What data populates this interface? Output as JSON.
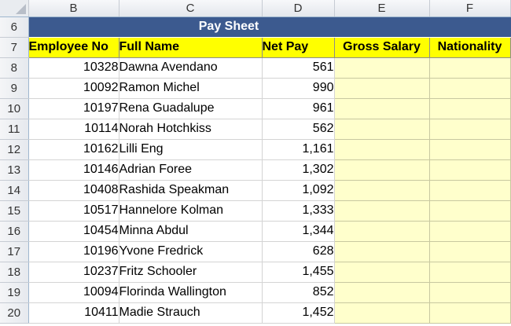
{
  "columns": [
    "B",
    "C",
    "D",
    "E",
    "F"
  ],
  "title_row": {
    "row": "6",
    "title": "Pay Sheet"
  },
  "header_row": {
    "row": "7",
    "employee_no": "Employee No",
    "full_name": "Full Name",
    "net_pay": "Net Pay",
    "gross_salary": "Gross Salary",
    "nationality": "Nationality"
  },
  "rows": [
    {
      "row": "8",
      "employee_no": "10328",
      "full_name": "Dawna Avendano",
      "net_pay": "561"
    },
    {
      "row": "9",
      "employee_no": "10092",
      "full_name": "Ramon Michel",
      "net_pay": "990"
    },
    {
      "row": "10",
      "employee_no": "10197",
      "full_name": "Rena Guadalupe",
      "net_pay": "961"
    },
    {
      "row": "11",
      "employee_no": "10114",
      "full_name": "Norah Hotchkiss",
      "net_pay": "562"
    },
    {
      "row": "12",
      "employee_no": "10162",
      "full_name": "Lilli Eng",
      "net_pay": "1,161"
    },
    {
      "row": "13",
      "employee_no": "10146",
      "full_name": "Adrian Foree",
      "net_pay": "1,302"
    },
    {
      "row": "14",
      "employee_no": "10408",
      "full_name": "Rashida Speakman",
      "net_pay": "1,092"
    },
    {
      "row": "15",
      "employee_no": "10517",
      "full_name": "Hannelore Kolman",
      "net_pay": "1,333"
    },
    {
      "row": "16",
      "employee_no": "10454",
      "full_name": "Minna Abdul",
      "net_pay": "1,344"
    },
    {
      "row": "17",
      "employee_no": "10196",
      "full_name": "Yvone Fredrick",
      "net_pay": "628"
    },
    {
      "row": "18",
      "employee_no": "10237",
      "full_name": "Fritz Schooler",
      "net_pay": "1,455"
    },
    {
      "row": "19",
      "employee_no": "10094",
      "full_name": "Florinda Wallington",
      "net_pay": "852"
    },
    {
      "row": "20",
      "employee_no": "10411",
      "full_name": "Madie Strauch",
      "net_pay": "1,452"
    }
  ],
  "colors": {
    "title_band": "#3c5a8f",
    "header_fill": "#ffff00",
    "input_fill": "#ffffcc"
  }
}
